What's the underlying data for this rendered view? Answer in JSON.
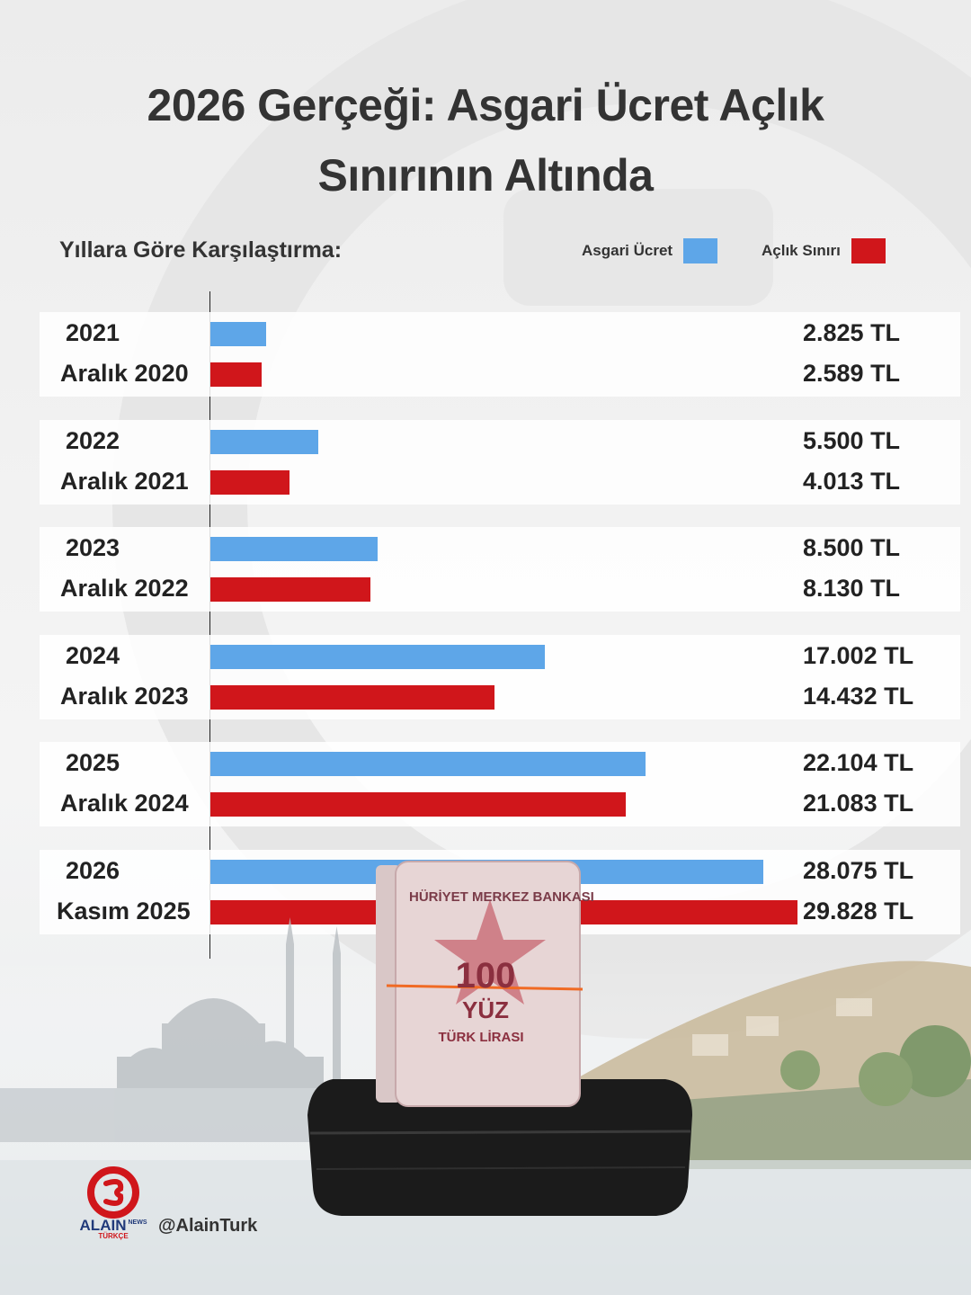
{
  "title_line1": "2026 Gerçeği: Asgari Ücret Açlık",
  "title_line2": "Sınırının Altında",
  "subtitle": "Yıllara Göre Karşılaştırma:",
  "legend": [
    {
      "label": "Asgari Ücret",
      "color": "#5ea6e8"
    },
    {
      "label": "Açlık Sınırı",
      "color": "#d0161b"
    }
  ],
  "colors": {
    "minimum_wage": "#5ea6e8",
    "hunger_line": "#d0161b",
    "logo_red": "#d0161b"
  },
  "chart_data": {
    "type": "bar",
    "orientation": "horizontal",
    "series": [
      {
        "name": "Asgari Ücret",
        "categories": [
          "2021",
          "2022",
          "2023",
          "2024",
          "2025",
          "2026"
        ],
        "values": [
          2825,
          5500,
          8500,
          17002,
          22104,
          28075
        ],
        "value_labels": [
          "2.825 TL",
          "5.500 TL",
          "8.500 TL",
          "17.002 TL",
          "22.104 TL",
          "28.075 TL"
        ]
      },
      {
        "name": "Açlık Sınırı",
        "categories": [
          "Aralık 2020",
          "Aralık 2021",
          "Aralık 2022",
          "Aralık 2023",
          "Aralık 2024",
          "Kasım 2025"
        ],
        "values": [
          2589,
          4013,
          8130,
          14432,
          21083,
          29828
        ],
        "value_labels": [
          "2.589 TL",
          "4.013 TL",
          "8.130 TL",
          "14.432 TL",
          "21.083 TL",
          "29.828 TL"
        ]
      }
    ],
    "xlim": [
      0,
      29828
    ],
    "grid": false,
    "legend_position": "top-right"
  },
  "footer": {
    "logo_top": "ALAIN",
    "logo_news": "NEWS",
    "logo_bottom": "TÜRKÇE",
    "handle": "@AlainTurk"
  },
  "banknote": {
    "bank": "HÜRİYET MERKEZ BANKASI",
    "value": "100",
    "words": "YÜZ",
    "currency": "TÜRK LİRASI"
  }
}
